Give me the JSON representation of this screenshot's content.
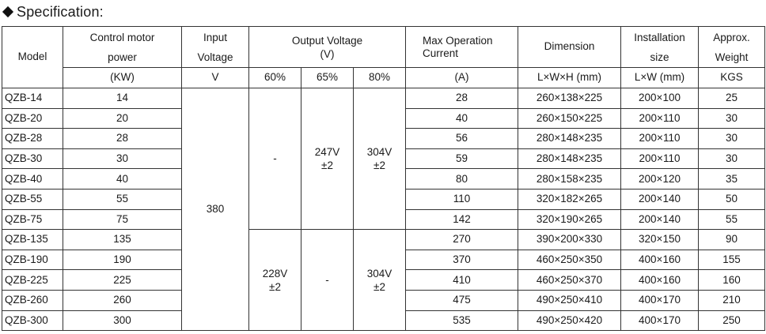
{
  "heading": "Specification:",
  "headers": {
    "model": "Model",
    "control_motor_power": [
      "Control motor",
      "power"
    ],
    "input_voltage": [
      "Input",
      "Voltage"
    ],
    "output_voltage": [
      "Output Voltage",
      "(V)"
    ],
    "max_operation_current": [
      "Max Operation",
      "Current"
    ],
    "dimension": "Dimension",
    "installation_size": [
      "Installation",
      "size"
    ],
    "approx_weight": [
      "Approx.",
      "Weight"
    ]
  },
  "units": {
    "power": "(KW)",
    "input": "V",
    "pct60": "60%",
    "pct65": "65%",
    "pct80": "80%",
    "current": "(A)",
    "dimension": "L×W×H (mm)",
    "installation": "L×W (mm)",
    "weight": "KGS"
  },
  "merged": {
    "input_voltage": "380",
    "group1": {
      "v60": "-",
      "v65": [
        "247V",
        "±2"
      ],
      "v80": [
        "304V",
        "±2"
      ]
    },
    "group2": {
      "v60": [
        "228V",
        "±2"
      ],
      "v65": "-",
      "v80": [
        "304V",
        "±2"
      ]
    }
  },
  "rows": [
    {
      "model": "QZB-14",
      "power": "14",
      "current": "28",
      "dimension": "260×138×225",
      "install": "200×100",
      "weight": "25"
    },
    {
      "model": "QZB-20",
      "power": "20",
      "current": "40",
      "dimension": "260×150×225",
      "install": "200×110",
      "weight": "30"
    },
    {
      "model": "QZB-28",
      "power": "28",
      "current": "56",
      "dimension": "280×148×235",
      "install": "200×110",
      "weight": "30"
    },
    {
      "model": "QZB-30",
      "power": "30",
      "current": "59",
      "dimension": "280×148×235",
      "install": "200×110",
      "weight": "30"
    },
    {
      "model": "QZB-40",
      "power": "40",
      "current": "80",
      "dimension": "280×158×235",
      "install": "200×120",
      "weight": "35"
    },
    {
      "model": "QZB-55",
      "power": "55",
      "current": "110",
      "dimension": "320×182×265",
      "install": "200×140",
      "weight": "50"
    },
    {
      "model": "QZB-75",
      "power": "75",
      "current": "142",
      "dimension": "320×190×265",
      "install": "200×140",
      "weight": "55"
    },
    {
      "model": "QZB-135",
      "power": "135",
      "current": "270",
      "dimension": "390×200×330",
      "install": "320×150",
      "weight": "90"
    },
    {
      "model": "QZB-190",
      "power": "190",
      "current": "370",
      "dimension": "460×250×350",
      "install": "400×160",
      "weight": "155"
    },
    {
      "model": "QZB-225",
      "power": "225",
      "current": "410",
      "dimension": "460×250×370",
      "install": "400×160",
      "weight": "160"
    },
    {
      "model": "QZB-260",
      "power": "260",
      "current": "475",
      "dimension": "490×250×410",
      "install": "400×170",
      "weight": "210"
    },
    {
      "model": "QZB-300",
      "power": "300",
      "current": "535",
      "dimension": "490×250×420",
      "install": "400×170",
      "weight": "250"
    }
  ]
}
